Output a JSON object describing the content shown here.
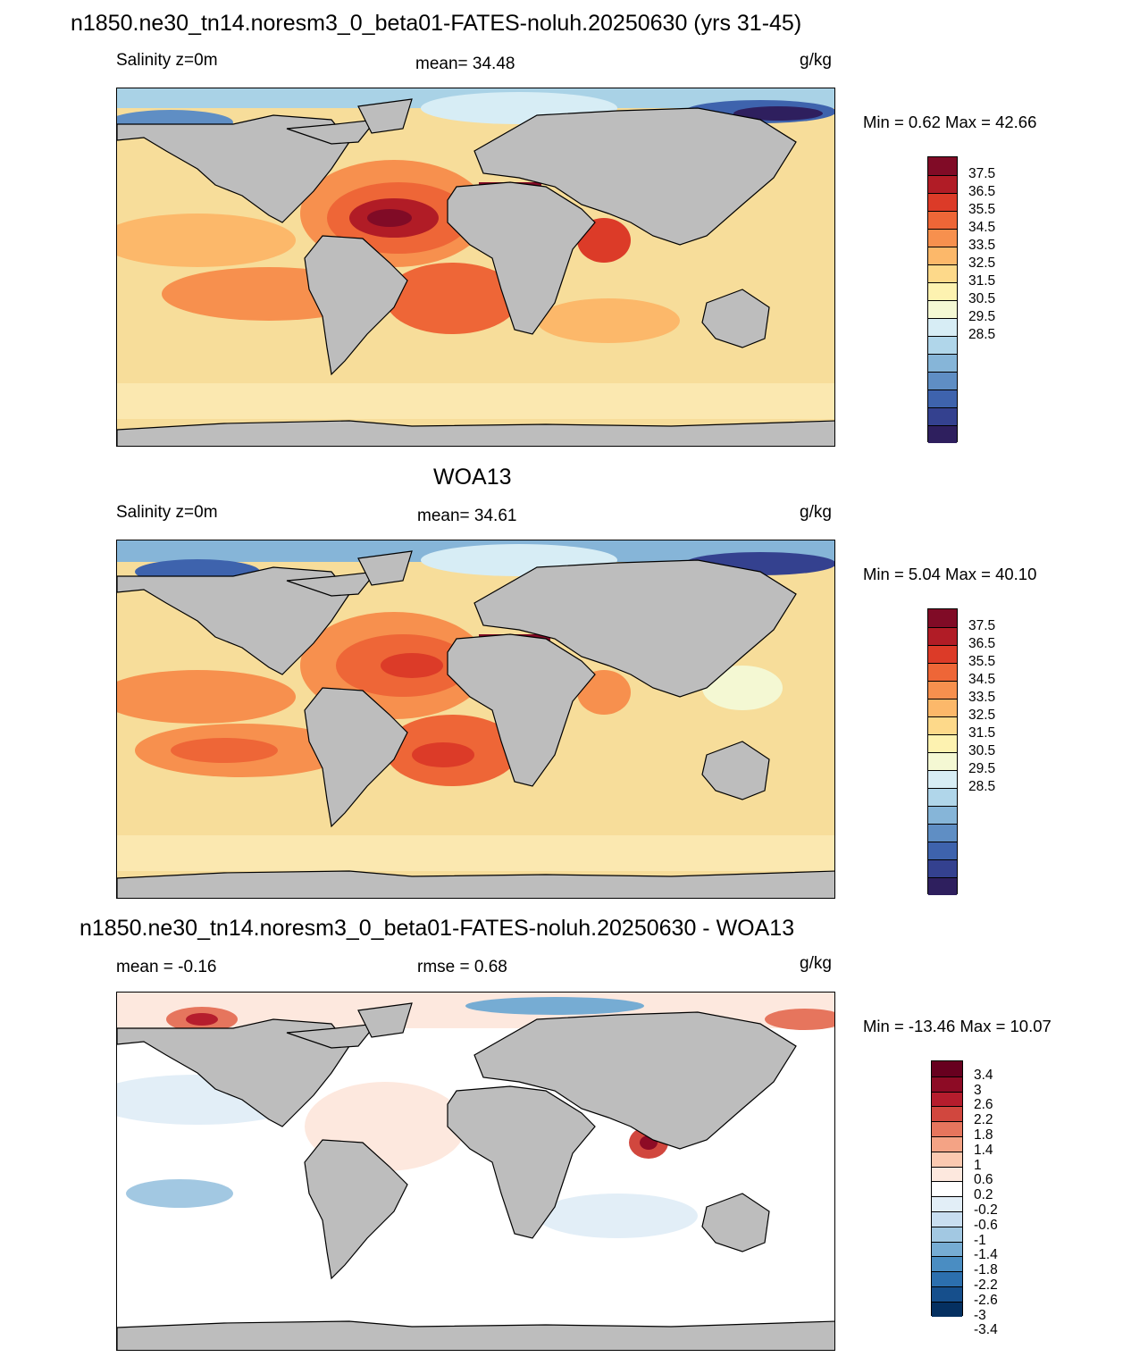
{
  "colors": {
    "land": "#bdbdbd",
    "abs_scale": [
      "#2e1f5e",
      "#34418f",
      "#3e63ad",
      "#5f8ec4",
      "#86b5d8",
      "#b0d6ea",
      "#d7edf5",
      "#f4f8d3",
      "#fdf2b0",
      "#fdd98a",
      "#fcb86a",
      "#f7904e",
      "#ee6637",
      "#dc3b28",
      "#b11c26",
      "#800b26"
    ],
    "diff_scale": [
      "#053061",
      "#164f8c",
      "#2c6fae",
      "#4a8dc2",
      "#76acd3",
      "#a2c8e2",
      "#c8def0",
      "#e2eef7",
      "#ffffff",
      "#fde8de",
      "#fbc9b0",
      "#f4a385",
      "#e6755d",
      "#d1473e",
      "#b51d2d",
      "#8d0b25",
      "#67001f"
    ]
  },
  "panels": [
    {
      "id": "model",
      "header": "n1850.ne30_tn14.noresm3_0_beta01-FATES-noluh.20250630 (yrs 31-45)",
      "left_text": "Salinity z=0m",
      "center_text": "mean=  34.48",
      "right_text": "g/kg",
      "minmax": "Min =   0.62 Max =  42.66",
      "colorbar_labels": [
        "37.5",
        "36.5",
        "35.5",
        "34.5",
        "33.5",
        "32.5",
        "31.5",
        "30.5",
        "29.5",
        "28.5"
      ]
    },
    {
      "id": "obs",
      "header": "WOA13",
      "left_text": "Salinity z=0m",
      "center_text": "mean=  34.61",
      "right_text": "g/kg",
      "minmax": "Min =   5.04 Max =  40.10",
      "colorbar_labels": [
        "37.5",
        "36.5",
        "35.5",
        "34.5",
        "33.5",
        "32.5",
        "31.5",
        "30.5",
        "29.5",
        "28.5"
      ]
    },
    {
      "id": "diff",
      "header": "n1850.ne30_tn14.noresm3_0_beta01-FATES-noluh.20250630 - WOA13",
      "left_text": "mean =  -0.16",
      "center_text": "rmse =   0.68",
      "right_text": "g/kg",
      "minmax": "Min = -13.46 Max =  10.07",
      "colorbar_labels": [
        "3.4",
        "3",
        "2.6",
        "2.2",
        "1.8",
        "1.4",
        "1",
        "0.6",
        "0.2",
        "-0.2",
        "-0.6",
        "-1",
        "-1.4",
        "-1.8",
        "-2.2",
        "-2.6",
        "-3",
        "-3.4"
      ]
    }
  ]
}
